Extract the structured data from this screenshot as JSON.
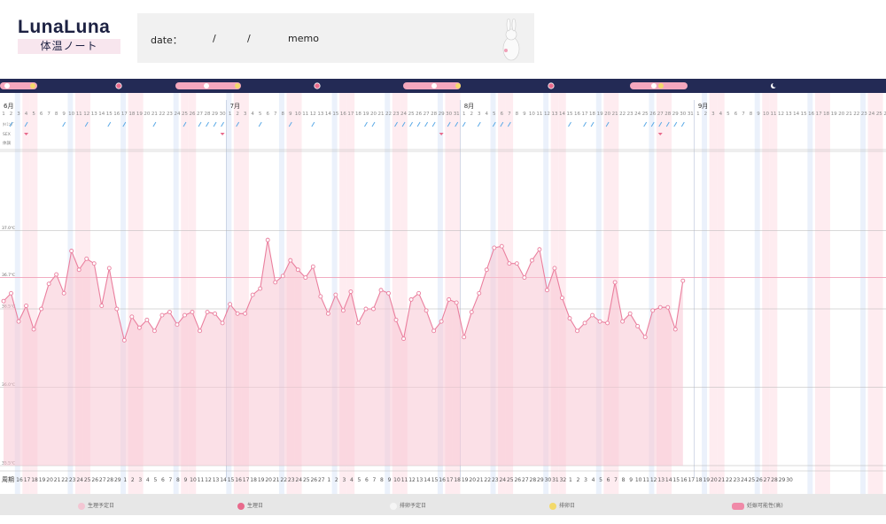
{
  "header": {
    "logo_text": "LunaLuna",
    "logo_subtitle": "体温ノート",
    "date_label": "date：",
    "date_sep1": "/",
    "date_sep2": "/",
    "memo_label": "memo"
  },
  "legend": [
    {
      "label": "生理予定日",
      "color": "#f3c6d3"
    },
    {
      "label": "生理日",
      "color": "#e86a8c"
    },
    {
      "label": "排卵予定日",
      "color": "#f5f5f5"
    },
    {
      "label": "排卵日",
      "color": "#f3d96a"
    },
    {
      "label": "妊娠可能性(高)",
      "color": "#f08aa8"
    }
  ],
  "row_labels": {
    "row1": "ﾀｲﾐﾝｸﾞ",
    "row2": "SEX",
    "row3": "体調"
  },
  "cycle_label": "周期",
  "chart_data": {
    "type": "line",
    "title": "",
    "ylim": [
      35.5,
      37.5
    ],
    "y_ticks": [
      "35.5℃",
      "36.0℃",
      "36.5℃",
      "36.7℃",
      "37.0℃"
    ],
    "y_tick_values": [
      35.5,
      36.0,
      36.5,
      36.7,
      37.0
    ],
    "months": [
      {
        "label": "6月",
        "start_day": 1,
        "days": 30
      },
      {
        "label": "7月",
        "start_day": 1,
        "days": 31
      },
      {
        "label": "8月",
        "start_day": 1,
        "days": 31
      },
      {
        "label": "9月",
        "start_day": 1,
        "days": 29
      }
    ],
    "dates_start": "6月1日",
    "cycle_days": [
      16,
      17,
      18,
      19,
      20,
      21,
      22,
      23,
      24,
      25,
      26,
      27,
      28,
      29,
      1,
      2,
      3,
      4,
      5,
      6,
      7,
      8,
      9,
      10,
      11,
      12,
      13,
      14,
      15,
      16,
      17,
      18,
      19,
      20,
      21,
      22,
      23,
      24,
      25,
      26,
      27,
      1,
      2,
      3,
      4,
      5,
      6,
      7,
      8,
      9,
      10,
      11,
      12,
      13,
      14,
      15,
      16,
      17,
      18,
      19,
      20,
      21,
      22,
      23,
      24,
      25,
      26,
      27,
      28,
      29,
      30,
      31,
      32,
      1,
      2,
      3,
      4,
      5,
      6,
      7,
      8,
      9,
      10,
      11,
      12,
      13,
      14,
      15,
      16,
      17,
      18,
      19,
      20,
      21,
      22,
      23,
      24,
      25,
      26,
      27,
      28,
      29,
      30
    ],
    "series": [
      {
        "start_date": "6月1日",
        "values": [
          36.55,
          36.6,
          36.42,
          36.52,
          36.37,
          36.5,
          36.66,
          36.72,
          36.6,
          36.87,
          36.75,
          36.82,
          36.79,
          36.52,
          36.76,
          36.5,
          36.3,
          36.45,
          36.38,
          36.43,
          36.36,
          36.46,
          36.48,
          36.4,
          36.46,
          36.48,
          36.36,
          36.48,
          36.47,
          36.41,
          36.53,
          36.47,
          36.47,
          36.59,
          36.63,
          36.94,
          36.67,
          36.71,
          36.81,
          36.75,
          36.7,
          36.77,
          36.58,
          36.47,
          36.59,
          36.49,
          36.61,
          36.41,
          36.5,
          36.5,
          36.62,
          36.6,
          36.43,
          36.31,
          36.56,
          36.6,
          36.49,
          36.36,
          36.42,
          36.56,
          36.54,
          36.32,
          36.48,
          36.6,
          36.75,
          36.89,
          36.9,
          36.79,
          36.79,
          36.7,
          36.81,
          36.88,
          36.62,
          36.76,
          36.57,
          36.44,
          36.36,
          36.41,
          36.46,
          36.42,
          36.41,
          36.67,
          36.42,
          36.47,
          36.39,
          36.32,
          36.49,
          36.51,
          36.51,
          36.37,
          36.68
        ]
      }
    ]
  }
}
